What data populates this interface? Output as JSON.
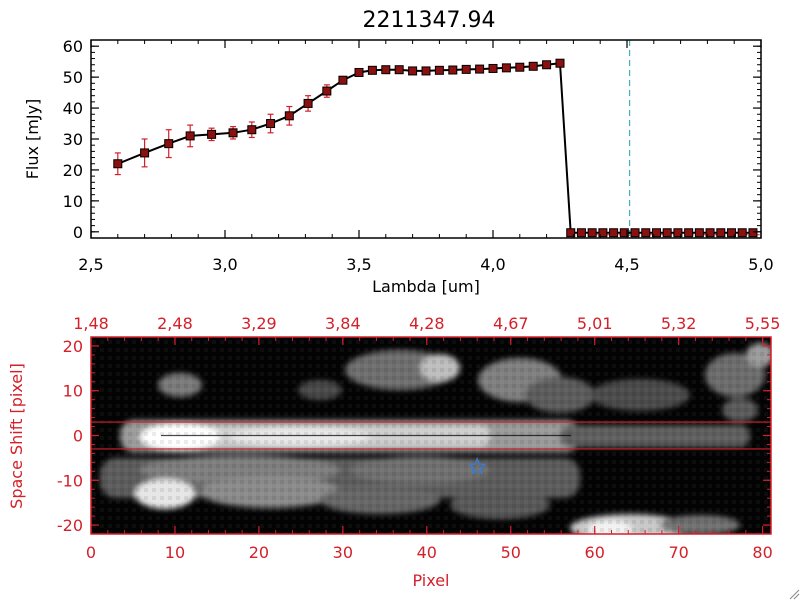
{
  "chart_data": [
    {
      "type": "line",
      "title": "2211347.94",
      "xlabel": "Lambda [um]",
      "ylabel": "Flux [mJy]",
      "xlim": [
        2.5,
        5.0
      ],
      "ylim": [
        -2,
        62
      ],
      "x_ticks": [
        "2.5",
        "3.0",
        "3.5",
        "4.0",
        "4.5",
        "5.0"
      ],
      "y_ticks": [
        "0",
        "10",
        "20",
        "30",
        "40",
        "50",
        "60"
      ],
      "series": [
        {
          "x": [
            2.6,
            2.7,
            2.79,
            2.87,
            2.95,
            3.03,
            3.1,
            3.17,
            3.24,
            3.31,
            3.38,
            3.44,
            3.5,
            3.55,
            3.6,
            3.65,
            3.7,
            3.75,
            3.8,
            3.85,
            3.9,
            3.95,
            4.0,
            4.05,
            4.1,
            4.15,
            4.2,
            4.25,
            4.29,
            4.33,
            4.37,
            4.41,
            4.45,
            4.49,
            4.53,
            4.57,
            4.61,
            4.65,
            4.69,
            4.73,
            4.77,
            4.81,
            4.85,
            4.89,
            4.93,
            4.97
          ],
          "y": [
            22,
            25.5,
            28.5,
            31,
            31.5,
            32,
            33,
            35,
            37.5,
            41.5,
            45.5,
            49,
            51.5,
            52.2,
            52.4,
            52.4,
            52,
            52,
            52.2,
            52.3,
            52.5,
            52.6,
            52.8,
            53,
            53.2,
            53.5,
            54,
            54.5,
            -0.3,
            -0.3,
            -0.3,
            -0.3,
            -0.3,
            -0.3,
            -0.3,
            -0.3,
            -0.3,
            -0.3,
            -0.3,
            -0.3,
            -0.3,
            -0.3,
            -0.3,
            -0.3,
            -0.3,
            -0.3
          ],
          "yerr": [
            3.5,
            4.5,
            4.5,
            3.5,
            2,
            2,
            2.5,
            3,
            3,
            2.5,
            2,
            0.5,
            0.5,
            0.5,
            0.5,
            0.5,
            0.5,
            0.5,
            0.5,
            0.5,
            0.5,
            0.5,
            0.5,
            0.5,
            0.5,
            0.5,
            0.5,
            0.5,
            0,
            0,
            0,
            0,
            0,
            0,
            0,
            0,
            0,
            0,
            0,
            0,
            0,
            0,
            0,
            0,
            0,
            0
          ]
        }
      ],
      "vertical_line_x": 4.51,
      "vertical_line_color": "#1aa7a7",
      "error_bar_color": "#d4202a",
      "marker_color": "#8b1010"
    },
    {
      "type": "heatmap",
      "xlabel": "Pixel",
      "ylabel": "Space Shift [pixel]",
      "xlim": [
        0,
        81
      ],
      "ylim": [
        -22,
        22
      ],
      "x_ticks": [
        "0",
        "10",
        "20",
        "30",
        "40",
        "50",
        "60",
        "70",
        "80"
      ],
      "y_ticks": [
        "-20",
        "-10",
        "0",
        "10",
        "20"
      ],
      "top_ticks": [
        "1.48",
        "2.48",
        "3.29",
        "3.84",
        "4.28",
        "4.67",
        "5.01",
        "5.32",
        "5.55"
      ],
      "aperture_lines": [
        3,
        -3
      ],
      "star_marker": {
        "x": 46,
        "y": -7
      },
      "axis_color": "#d4202a",
      "star_color": "#3a7bd5"
    }
  ]
}
